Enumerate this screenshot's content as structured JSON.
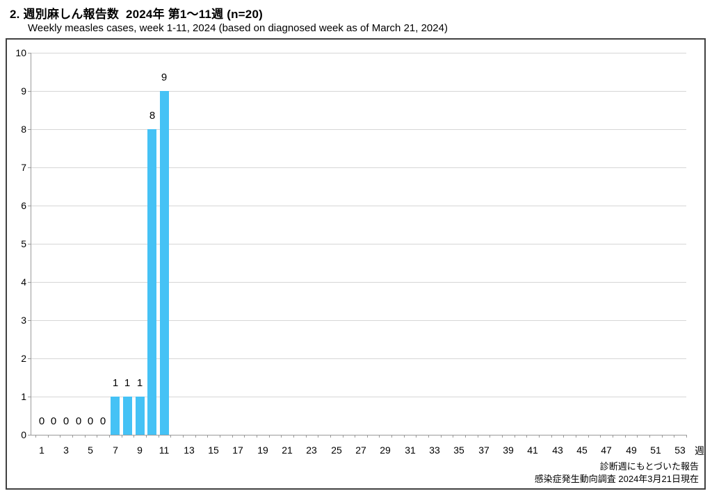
{
  "header": {
    "title": "2. 週別麻しん報告数  2024年 第1～11週 (n=20)",
    "subtitle": "Weekly measles cases, week 1-11, 2024 (based on diagnosed week as of March 21, 2024)"
  },
  "chart_data": {
    "type": "bar",
    "title": "2. 週別麻しん報告数  2024年 第1～11週 (n=20)",
    "subtitle": "Weekly measles cases, week 1-11, 2024 (based on diagnosed week as of March 21, 2024)",
    "n_total": 20,
    "xlabel": "週",
    "ylabel": "",
    "ylim": [
      0,
      10
    ],
    "y_tick_labels": [
      "0",
      "1",
      "2",
      "3",
      "4",
      "5",
      "6",
      "7",
      "8",
      "9",
      "10"
    ],
    "x_week_range": [
      1,
      53
    ],
    "x_tick_labels": [
      "1",
      "3",
      "5",
      "7",
      "9",
      "11",
      "13",
      "15",
      "17",
      "19",
      "21",
      "23",
      "25",
      "27",
      "29",
      "31",
      "33",
      "35",
      "37",
      "39",
      "41",
      "43",
      "45",
      "47",
      "49",
      "51",
      "53"
    ],
    "categories": [
      1,
      2,
      3,
      4,
      5,
      6,
      7,
      8,
      9,
      10,
      11
    ],
    "values": [
      0,
      0,
      0,
      0,
      0,
      0,
      1,
      1,
      1,
      8,
      9
    ],
    "data_labels": true,
    "grid": true,
    "legend": "none",
    "bar_color": "#45C2F5",
    "gridline_color": "#D6D6D6",
    "axis_color": "#9A9A9A",
    "frame_border_color": "#404040"
  },
  "footer": {
    "note1": "診断週にもとづいた報告",
    "note2": "感染症発生動向調査 2024年3月21日現在"
  }
}
